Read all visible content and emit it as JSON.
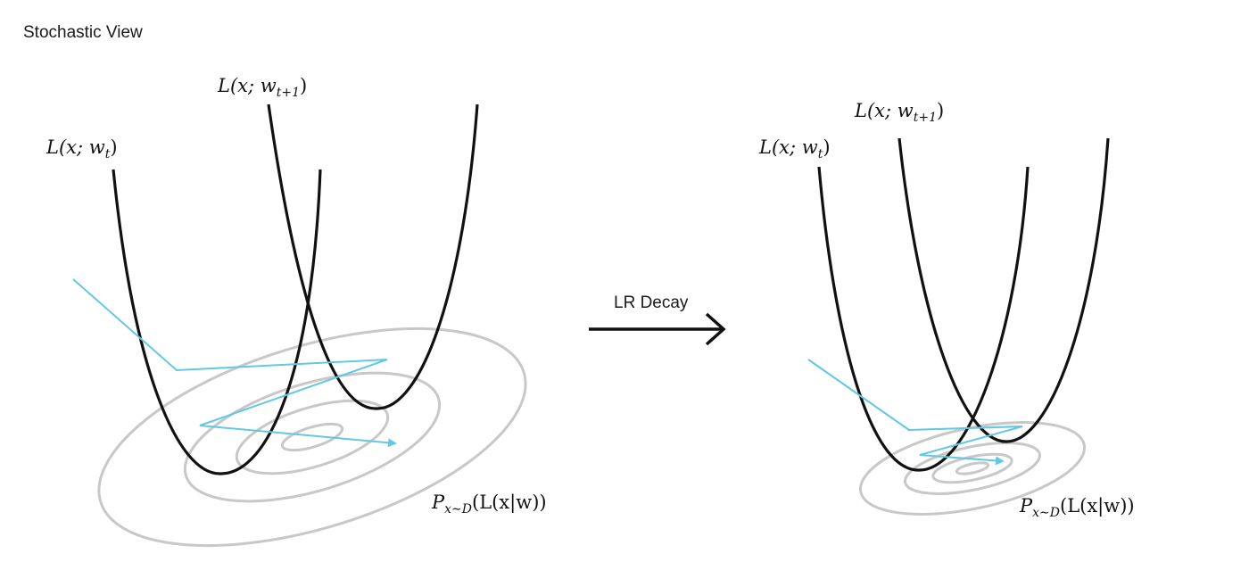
{
  "title": "Stochastic View",
  "arrow_label": "LR Decay",
  "colors": {
    "contour": "#c8c8c8",
    "curve": "#111111",
    "sgd_path": "#62c8e3"
  },
  "left_panel": {
    "curve_a_label": {
      "main": "L(x; w",
      "sub": "t",
      "close": ")"
    },
    "curve_b_label": {
      "main": "L(x; w",
      "sub": "t+1",
      "close": ")"
    },
    "distribution_label": {
      "P": "P",
      "sub": "x∼D",
      "rest": "(L(x|w))"
    }
  },
  "right_panel": {
    "curve_a_label": {
      "main": "L(x; w",
      "sub": "t",
      "close": ")"
    },
    "curve_b_label": {
      "main": "L(x; w",
      "sub": "t+1",
      "close": ")"
    },
    "distribution_label": {
      "P": "P",
      "sub": "x∼D",
      "rest": "(L(x|w))"
    }
  }
}
